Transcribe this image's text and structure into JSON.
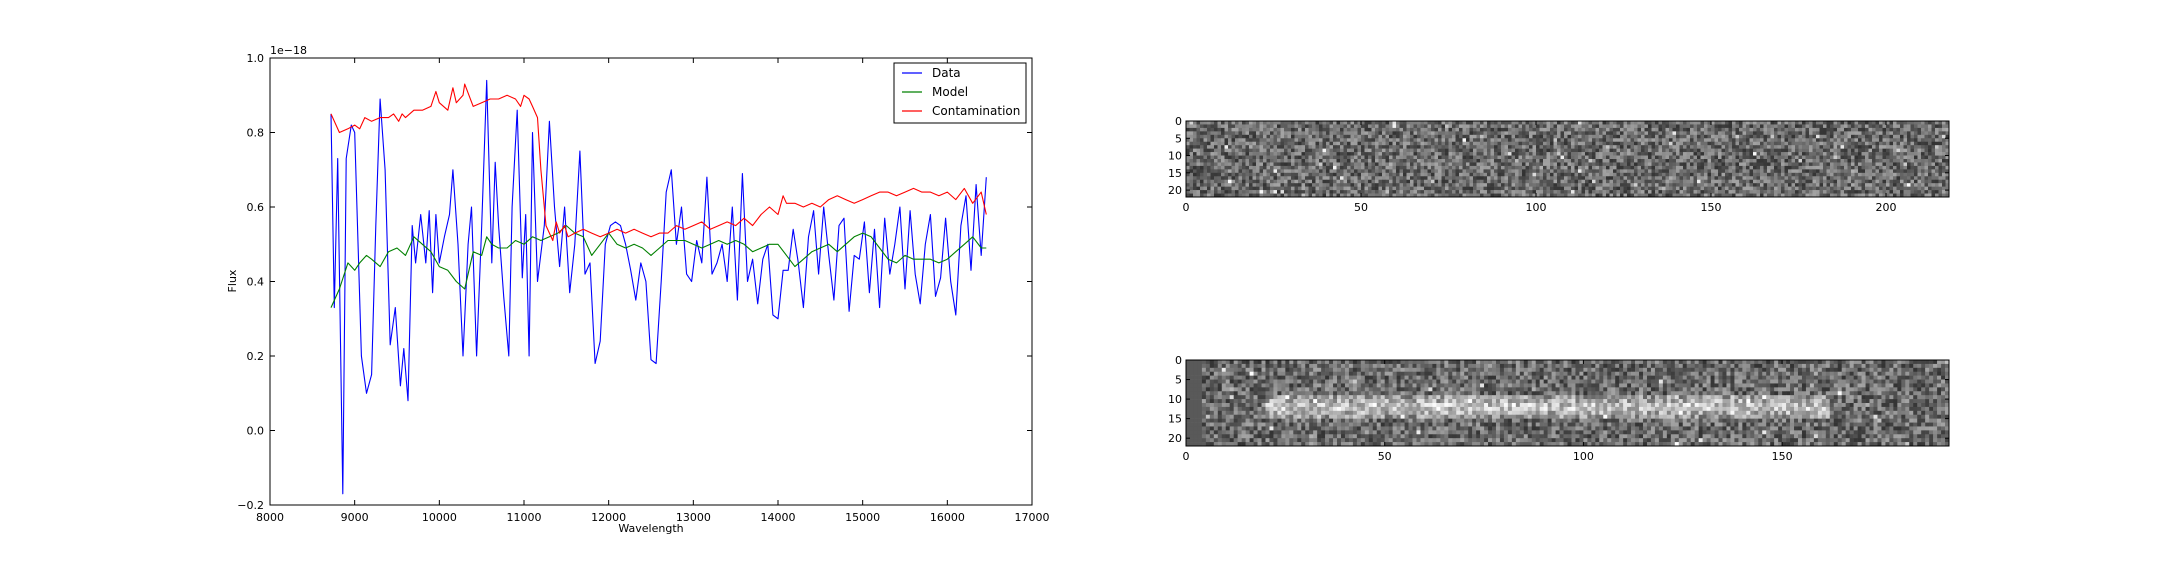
{
  "chart_data": [
    {
      "type": "line",
      "title": "",
      "xlabel": "Wavelength",
      "ylabel": "Flux",
      "offset_text": "1e−18",
      "xlim": [
        8000,
        17000
      ],
      "ylim": [
        -0.2,
        1.0
      ],
      "xticks": [
        8000,
        9000,
        10000,
        11000,
        12000,
        13000,
        14000,
        15000,
        16000,
        17000
      ],
      "yticks": [
        -0.2,
        0.0,
        0.2,
        0.4,
        0.6,
        0.8,
        1.0
      ],
      "legend_position": "upper right",
      "series": [
        {
          "name": "Data",
          "color": "#0000ff",
          "x": [
            8720,
            8760,
            8800,
            8860,
            8900,
            8960,
            9000,
            9080,
            9140,
            9200,
            9250,
            9300,
            9360,
            9420,
            9480,
            9540,
            9580,
            9630,
            9680,
            9720,
            9780,
            9840,
            9880,
            9920,
            9960,
            10000,
            10060,
            10120,
            10160,
            10220,
            10280,
            10340,
            10380,
            10440,
            10500,
            10560,
            10620,
            10660,
            10700,
            10760,
            10820,
            10860,
            10920,
            10980,
            11020,
            11060,
            11100,
            11160,
            11240,
            11300,
            11360,
            11420,
            11480,
            11540,
            11600,
            11660,
            11720,
            11780,
            11840,
            11900,
            11960,
            12020,
            12080,
            12140,
            12200,
            12260,
            12320,
            12380,
            12440,
            12500,
            12560,
            12620,
            12680,
            12740,
            12800,
            12860,
            12920,
            12980,
            13040,
            13100,
            13160,
            13220,
            13280,
            13340,
            13400,
            13460,
            13520,
            13580,
            13640,
            13700,
            13760,
            13820,
            13880,
            13940,
            14000,
            14060,
            14120,
            14180,
            14240,
            14300,
            14360,
            14420,
            14480,
            14540,
            14600,
            14660,
            14720,
            14780,
            14840,
            14900,
            14960,
            15020,
            15080,
            15140,
            15200,
            15260,
            15320,
            15380,
            15440,
            15500,
            15560,
            15620,
            15680,
            15740,
            15800,
            15860,
            15920,
            15980,
            16040,
            16100,
            16160,
            16220,
            16280,
            16340,
            16400,
            16460
          ],
          "y": [
            0.85,
            0.33,
            0.73,
            -0.17,
            0.73,
            0.82,
            0.8,
            0.2,
            0.1,
            0.15,
            0.55,
            0.89,
            0.7,
            0.23,
            0.33,
            0.12,
            0.22,
            0.08,
            0.55,
            0.45,
            0.58,
            0.45,
            0.59,
            0.37,
            0.58,
            0.45,
            0.52,
            0.58,
            0.7,
            0.5,
            0.2,
            0.5,
            0.6,
            0.2,
            0.55,
            0.94,
            0.45,
            0.72,
            0.55,
            0.36,
            0.2,
            0.6,
            0.86,
            0.41,
            0.58,
            0.2,
            0.8,
            0.4,
            0.55,
            0.83,
            0.6,
            0.44,
            0.6,
            0.37,
            0.5,
            0.75,
            0.42,
            0.45,
            0.18,
            0.24,
            0.5,
            0.55,
            0.56,
            0.55,
            0.5,
            0.43,
            0.35,
            0.45,
            0.4,
            0.19,
            0.18,
            0.4,
            0.64,
            0.7,
            0.5,
            0.6,
            0.42,
            0.4,
            0.51,
            0.45,
            0.68,
            0.42,
            0.45,
            0.5,
            0.4,
            0.6,
            0.35,
            0.69,
            0.4,
            0.46,
            0.34,
            0.46,
            0.5,
            0.31,
            0.3,
            0.43,
            0.43,
            0.54,
            0.45,
            0.33,
            0.52,
            0.59,
            0.42,
            0.6,
            0.47,
            0.35,
            0.55,
            0.57,
            0.32,
            0.47,
            0.46,
            0.56,
            0.37,
            0.54,
            0.33,
            0.57,
            0.42,
            0.5,
            0.6,
            0.38,
            0.59,
            0.42,
            0.34,
            0.5,
            0.58,
            0.36,
            0.41,
            0.57,
            0.4,
            0.31,
            0.55,
            0.63,
            0.43,
            0.66,
            0.47,
            0.68
          ]
        },
        {
          "name": "Model",
          "color": "#008000",
          "x": [
            8720,
            8820,
            8920,
            9000,
            9060,
            9140,
            9200,
            9300,
            9400,
            9500,
            9600,
            9700,
            9800,
            9900,
            10000,
            10100,
            10200,
            10300,
            10400,
            10500,
            10560,
            10620,
            10700,
            10800,
            10900,
            11000,
            11100,
            11200,
            11300,
            11400,
            11500,
            11600,
            11700,
            11800,
            11900,
            12000,
            12100,
            12200,
            12300,
            12400,
            12500,
            12600,
            12700,
            12800,
            12900,
            13000,
            13100,
            13200,
            13300,
            13400,
            13500,
            13600,
            13700,
            13800,
            13900,
            14000,
            14100,
            14200,
            14300,
            14400,
            14500,
            14600,
            14700,
            14800,
            14900,
            15000,
            15100,
            15200,
            15300,
            15400,
            15500,
            15600,
            15700,
            15800,
            15900,
            16000,
            16100,
            16200,
            16300,
            16400,
            16460
          ],
          "y": [
            0.33,
            0.38,
            0.45,
            0.43,
            0.45,
            0.47,
            0.46,
            0.44,
            0.48,
            0.49,
            0.47,
            0.52,
            0.5,
            0.48,
            0.44,
            0.43,
            0.4,
            0.38,
            0.48,
            0.47,
            0.52,
            0.5,
            0.49,
            0.49,
            0.51,
            0.5,
            0.52,
            0.51,
            0.52,
            0.53,
            0.55,
            0.53,
            0.52,
            0.47,
            0.5,
            0.53,
            0.5,
            0.49,
            0.5,
            0.49,
            0.47,
            0.49,
            0.51,
            0.51,
            0.51,
            0.5,
            0.49,
            0.5,
            0.51,
            0.5,
            0.51,
            0.5,
            0.48,
            0.49,
            0.5,
            0.5,
            0.47,
            0.44,
            0.46,
            0.48,
            0.49,
            0.5,
            0.48,
            0.5,
            0.52,
            0.53,
            0.52,
            0.49,
            0.46,
            0.45,
            0.47,
            0.46,
            0.46,
            0.46,
            0.45,
            0.46,
            0.48,
            0.5,
            0.52,
            0.49,
            0.49
          ]
        },
        {
          "name": "Contamination",
          "color": "#ff0000",
          "x": [
            8720,
            8820,
            8920,
            9000,
            9060,
            9120,
            9200,
            9300,
            9400,
            9460,
            9520,
            9560,
            9600,
            9700,
            9800,
            9900,
            9960,
            10000,
            10100,
            10160,
            10200,
            10280,
            10300,
            10400,
            10500,
            10600,
            10700,
            10800,
            10900,
            10960,
            11000,
            11060,
            11100,
            11160,
            11200,
            11260,
            11300,
            11340,
            11380,
            11420,
            11480,
            11520,
            11600,
            11700,
            11800,
            11900,
            12000,
            12100,
            12200,
            12300,
            12400,
            12500,
            12600,
            12700,
            12800,
            12900,
            13000,
            13100,
            13200,
            13300,
            13400,
            13500,
            13600,
            13700,
            13800,
            13900,
            14000,
            14060,
            14100,
            14200,
            14300,
            14400,
            14500,
            14600,
            14700,
            14800,
            14900,
            15000,
            15100,
            15200,
            15300,
            15400,
            15500,
            15600,
            15700,
            15800,
            15900,
            16000,
            16100,
            16200,
            16300,
            16400,
            16460
          ],
          "y": [
            0.85,
            0.8,
            0.81,
            0.82,
            0.81,
            0.84,
            0.83,
            0.84,
            0.84,
            0.85,
            0.83,
            0.85,
            0.84,
            0.86,
            0.86,
            0.87,
            0.91,
            0.88,
            0.86,
            0.92,
            0.88,
            0.9,
            0.93,
            0.87,
            0.88,
            0.89,
            0.89,
            0.9,
            0.89,
            0.87,
            0.9,
            0.89,
            0.87,
            0.84,
            0.7,
            0.55,
            0.53,
            0.51,
            0.56,
            0.53,
            0.55,
            0.52,
            0.53,
            0.54,
            0.53,
            0.52,
            0.53,
            0.54,
            0.53,
            0.54,
            0.53,
            0.52,
            0.53,
            0.53,
            0.55,
            0.54,
            0.55,
            0.56,
            0.54,
            0.55,
            0.56,
            0.55,
            0.57,
            0.55,
            0.58,
            0.6,
            0.58,
            0.63,
            0.61,
            0.61,
            0.6,
            0.61,
            0.6,
            0.62,
            0.63,
            0.62,
            0.61,
            0.62,
            0.63,
            0.64,
            0.64,
            0.63,
            0.64,
            0.65,
            0.64,
            0.64,
            0.63,
            0.64,
            0.62,
            0.65,
            0.61,
            0.64,
            0.58
          ]
        }
      ]
    },
    {
      "type": "heatmap",
      "xlim": [
        0,
        218
      ],
      "ylim": [
        22,
        0
      ],
      "xticks": [
        0,
        50,
        100,
        150,
        200
      ],
      "yticks": [
        0,
        5,
        10,
        15,
        20
      ],
      "colormap": "gray",
      "trace": "none"
    },
    {
      "type": "heatmap",
      "xlim": [
        0,
        192
      ],
      "ylim": [
        22,
        0
      ],
      "xticks": [
        0,
        50,
        100,
        150
      ],
      "yticks": [
        0,
        5,
        10,
        15,
        20
      ],
      "colormap": "gray",
      "trace": "bright horizontal band near rows 9 to 14, columns 20 to 160"
    }
  ]
}
